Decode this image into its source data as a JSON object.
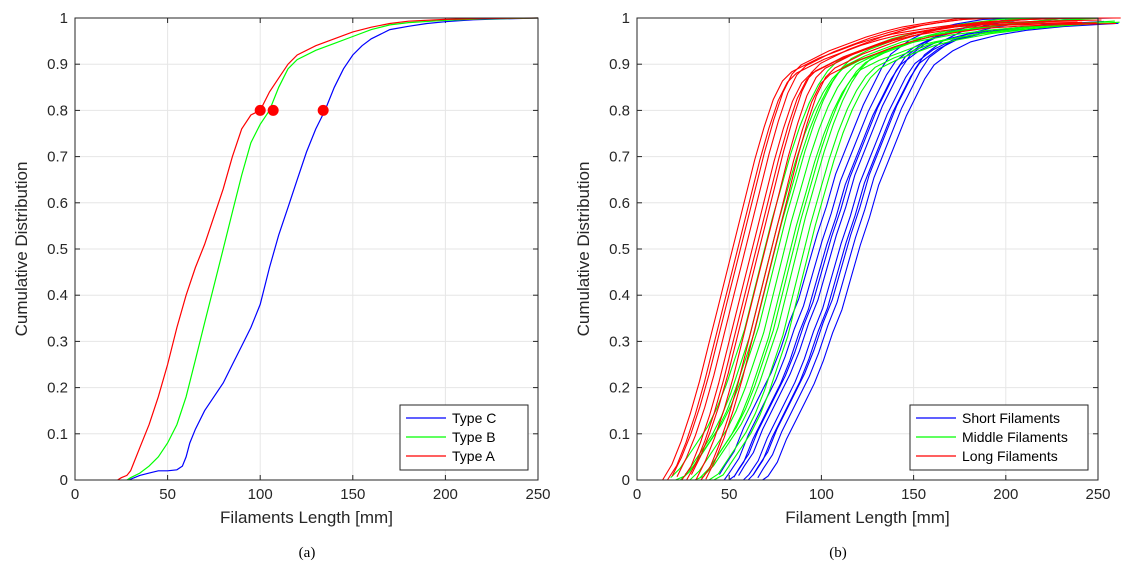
{
  "captions": [
    "(a)",
    "(b)"
  ],
  "chart_data": [
    {
      "type": "line",
      "title": "",
      "xlabel": "Filaments Length [mm]",
      "ylabel": "Cumulative Distribution",
      "xlim": [
        0,
        250
      ],
      "ylim": [
        0,
        1
      ],
      "xticks": [
        0,
        50,
        100,
        150,
        200,
        250
      ],
      "yticks": [
        0,
        0.1,
        0.2,
        0.3,
        0.4,
        0.5,
        0.6,
        0.7,
        0.8,
        0.9,
        1
      ],
      "grid": true,
      "legend_position": "bottom-right",
      "series": [
        {
          "name": "Type C",
          "color": "#0000ff",
          "x": [
            29,
            32,
            35,
            40,
            45,
            50,
            55,
            58,
            60,
            62,
            65,
            70,
            75,
            80,
            85,
            90,
            95,
            100,
            105,
            110,
            115,
            120,
            125,
            130,
            135,
            140,
            145,
            150,
            155,
            160,
            165,
            170,
            180,
            190,
            200,
            215,
            230,
            250
          ],
          "y": [
            0,
            0.005,
            0.01,
            0.015,
            0.02,
            0.02,
            0.022,
            0.03,
            0.05,
            0.08,
            0.11,
            0.15,
            0.18,
            0.21,
            0.25,
            0.29,
            0.33,
            0.38,
            0.46,
            0.53,
            0.59,
            0.65,
            0.71,
            0.76,
            0.8,
            0.85,
            0.89,
            0.92,
            0.94,
            0.955,
            0.965,
            0.975,
            0.982,
            0.988,
            0.992,
            0.996,
            0.998,
            1
          ]
        },
        {
          "name": "Type B",
          "color": "#00ff00",
          "x": [
            28,
            30,
            35,
            40,
            45,
            50,
            55,
            60,
            65,
            70,
            75,
            80,
            85,
            90,
            95,
            100,
            105,
            110,
            115,
            120,
            130,
            140,
            150,
            160,
            170,
            180,
            200,
            220,
            250
          ],
          "y": [
            0,
            0.005,
            0.015,
            0.03,
            0.05,
            0.08,
            0.12,
            0.18,
            0.26,
            0.34,
            0.42,
            0.5,
            0.58,
            0.66,
            0.73,
            0.77,
            0.8,
            0.85,
            0.89,
            0.91,
            0.93,
            0.945,
            0.96,
            0.975,
            0.985,
            0.99,
            0.995,
            0.998,
            1
          ]
        },
        {
          "name": "Type A",
          "color": "#ff0000",
          "x": [
            23,
            25,
            28,
            30,
            32,
            35,
            40,
            45,
            50,
            55,
            60,
            65,
            70,
            75,
            80,
            85,
            90,
            95,
            100,
            105,
            110,
            115,
            120,
            130,
            140,
            150,
            160,
            170,
            180,
            200,
            220,
            250
          ],
          "y": [
            0,
            0.005,
            0.01,
            0.02,
            0.04,
            0.07,
            0.12,
            0.18,
            0.25,
            0.33,
            0.4,
            0.46,
            0.51,
            0.57,
            0.63,
            0.7,
            0.76,
            0.79,
            0.8,
            0.84,
            0.87,
            0.9,
            0.92,
            0.94,
            0.955,
            0.97,
            0.98,
            0.988,
            0.993,
            0.997,
            0.999,
            1
          ]
        }
      ],
      "markers": [
        {
          "x": 100,
          "y": 0.8,
          "color": "#ff0000"
        },
        {
          "x": 107,
          "y": 0.8,
          "color": "#ff0000"
        },
        {
          "x": 134,
          "y": 0.8,
          "color": "#ff0000"
        }
      ]
    },
    {
      "type": "line",
      "title": "",
      "xlabel": "Filament Length [mm]",
      "ylabel": "Cumulative Distribution",
      "xlim": [
        0,
        250
      ],
      "ylim": [
        0,
        1
      ],
      "xticks": [
        0,
        50,
        100,
        150,
        200,
        250
      ],
      "yticks": [
        0,
        0.1,
        0.2,
        0.3,
        0.4,
        0.5,
        0.6,
        0.7,
        0.8,
        0.9,
        1
      ],
      "grid": true,
      "legend_position": "bottom-right",
      "legend": [
        {
          "name": "Short Filaments",
          "color": "#0000ff"
        },
        {
          "name": "Middle Filaments",
          "color": "#00ff00"
        },
        {
          "name": "Long Filaments",
          "color": "#ff0000"
        }
      ],
      "groups": [
        {
          "name": "Short Filaments",
          "color": "#0000ff",
          "count": 10,
          "x": [
            57,
            60,
            65,
            70,
            75,
            80,
            85,
            90,
            95,
            100,
            105,
            110,
            115,
            120,
            125,
            130,
            135,
            140,
            145,
            150,
            160,
            170,
            185,
            200,
            220,
            250
          ],
          "y": [
            0,
            0.02,
            0.05,
            0.1,
            0.14,
            0.18,
            0.22,
            0.27,
            0.33,
            0.38,
            0.45,
            0.52,
            0.58,
            0.65,
            0.7,
            0.75,
            0.8,
            0.84,
            0.88,
            0.91,
            0.94,
            0.96,
            0.975,
            0.985,
            0.993,
            1
          ]
        },
        {
          "name": "Middle Filaments",
          "color": "#00ff00",
          "count": 10,
          "x": [
            30,
            35,
            40,
            45,
            50,
            55,
            60,
            65,
            70,
            75,
            80,
            85,
            90,
            95,
            100,
            105,
            110,
            115,
            120,
            130,
            140,
            150,
            160,
            180,
            200,
            225,
            250
          ],
          "y": [
            0,
            0.02,
            0.05,
            0.08,
            0.11,
            0.15,
            0.2,
            0.26,
            0.32,
            0.4,
            0.48,
            0.56,
            0.63,
            0.7,
            0.76,
            0.81,
            0.85,
            0.88,
            0.9,
            0.92,
            0.935,
            0.95,
            0.96,
            0.975,
            0.985,
            0.994,
            1
          ]
        },
        {
          "name": "Long Filaments",
          "color": "#ff0000",
          "count": 10,
          "x": [
            25,
            30,
            35,
            40,
            45,
            50,
            55,
            60,
            65,
            70,
            75,
            80,
            85,
            90,
            95,
            100,
            105,
            110,
            120,
            130,
            140,
            150,
            165,
            180,
            200,
            225,
            250
          ],
          "y": [
            0,
            0.04,
            0.09,
            0.15,
            0.22,
            0.3,
            0.38,
            0.46,
            0.54,
            0.62,
            0.7,
            0.77,
            0.83,
            0.87,
            0.89,
            0.9,
            0.91,
            0.92,
            0.935,
            0.95,
            0.962,
            0.972,
            0.982,
            0.99,
            0.995,
            0.998,
            1
          ]
        }
      ]
    }
  ]
}
